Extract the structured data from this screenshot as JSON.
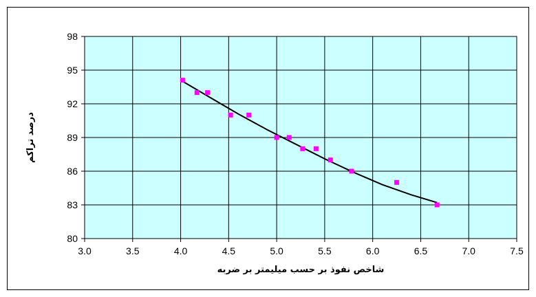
{
  "chart_data": {
    "type": "scatter",
    "title": "",
    "xlabel": "شاخص نفوذ بر حسب میلیمتر بر ضربه",
    "ylabel": "درصد تراکم",
    "xlim": [
      3.0,
      7.5
    ],
    "ylim": [
      80,
      98
    ],
    "x_ticks": [
      "3.0",
      "3.5",
      "4.0",
      "4.5",
      "5.0",
      "5.5",
      "6.0",
      "6.5",
      "7.0",
      "7.5"
    ],
    "y_ticks": [
      "80",
      "83",
      "86",
      "89",
      "92",
      "95",
      "98"
    ],
    "grid": true,
    "legend": "none",
    "colors": {
      "plot_background": "#ccffff",
      "points": "#ff00ff",
      "trendline": "#000000",
      "grid": "#000000"
    },
    "series": [
      {
        "marker": "square",
        "x": [
          4.02,
          4.17,
          4.28,
          4.52,
          4.71,
          5.0,
          5.13,
          5.27,
          5.41,
          5.56,
          5.78,
          6.25,
          6.67
        ],
        "y": [
          94.1,
          93.0,
          93.0,
          91.0,
          91.0,
          89.0,
          89.0,
          88.0,
          88.0,
          87.0,
          86.0,
          85.0,
          83.0
        ]
      }
    ],
    "trendline": {
      "type": "curve",
      "x": [
        4.02,
        4.3,
        4.6,
        4.9,
        5.2,
        5.5,
        5.8,
        6.1,
        6.4,
        6.67
      ],
      "y": [
        94.0,
        92.6,
        91.1,
        89.7,
        88.4,
        87.1,
        85.9,
        84.8,
        83.9,
        83.2
      ]
    }
  }
}
